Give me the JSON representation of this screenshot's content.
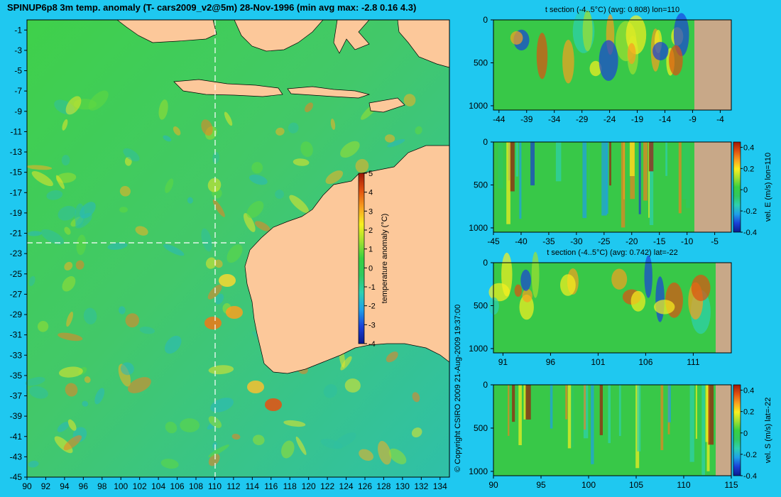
{
  "title": "SPINUP6p8 3m temp. anomaly (T- cars2009_v2@5m) 28-Nov-1996 (min avg max: -2.8 0.16 4.3)",
  "copyright": "© Copyright CSIRO 2009  21-Aug-2009 19:37:00",
  "colors": {
    "background": "#1fc8f0",
    "land": "#fcc89a",
    "section_land": "#c8a888",
    "colormap": [
      "#0a1a8c",
      "#1a40d8",
      "#1ea0e8",
      "#2dd0b0",
      "#30c860",
      "#38d040",
      "#a0e030",
      "#f8f020",
      "#f8a020",
      "#e05010",
      "#a01808"
    ]
  },
  "chart_data": [
    {
      "type": "heatmap",
      "panel": "map",
      "xlim": [
        90,
        135
      ],
      "ylim": [
        -45,
        0
      ],
      "x_ticks": [
        "90",
        "92",
        "94",
        "96",
        "98",
        "100",
        "102",
        "104",
        "106",
        "108",
        "110",
        "112",
        "114",
        "116",
        "118",
        "120",
        "122",
        "124",
        "126",
        "128",
        "130",
        "132",
        "134"
      ],
      "y_ticks": [
        "-1",
        "-3",
        "-5",
        "-7",
        "-9",
        "-11",
        "-13",
        "-15",
        "-17",
        "-19",
        "-21",
        "-23",
        "-25",
        "-27",
        "-29",
        "-31",
        "-33",
        "-35",
        "-37",
        "-39",
        "-41",
        "-43",
        "-45"
      ],
      "section_lines": {
        "lon": 110,
        "lat": -22
      },
      "colorbar": {
        "label": "temperature anomaly (°C)",
        "range": [
          -4,
          5
        ],
        "ticks": [
          "5",
          "4",
          "3",
          "2",
          "1",
          "0",
          "-1",
          "-2",
          "-3",
          "-4"
        ]
      }
    },
    {
      "type": "heatmap",
      "panel": "t-section-lon110",
      "title": "t section (-4..5°C) (avg: 0.808) lon=110",
      "x_ticks": [
        "-44",
        "-39",
        "-34",
        "-29",
        "-24",
        "-19",
        "-14",
        "-9",
        "-4"
      ],
      "y_ticks": [
        "0",
        "500",
        "1000"
      ],
      "xlim": [
        -45,
        -2
      ],
      "ylim": [
        1050,
        0
      ]
    },
    {
      "type": "heatmap",
      "panel": "velE-section-lon110",
      "x_ticks": [
        "-45",
        "-40",
        "-35",
        "-30",
        "-25",
        "-20",
        "-15",
        "-10",
        "-5"
      ],
      "y_ticks": [
        "0",
        "500",
        "1000"
      ],
      "xlim": [
        -45,
        -2
      ],
      "ylim": [
        1050,
        0
      ],
      "colorbar": {
        "label": "vel. E (m/s) lon=110",
        "range": [
          -0.4,
          0.45
        ],
        "ticks": [
          "0.4",
          "0.2",
          "0",
          "-0.2",
          "-0.4"
        ]
      }
    },
    {
      "type": "heatmap",
      "panel": "t-section-lat-22",
      "title": "t section (-4..5°C) (avg: 0.742) lat=-22",
      "x_ticks": [
        "91",
        "96",
        "101",
        "106",
        "111"
      ],
      "y_ticks": [
        "0",
        "500",
        "1000"
      ],
      "xlim": [
        90,
        115
      ],
      "ylim": [
        1050,
        0
      ]
    },
    {
      "type": "heatmap",
      "panel": "velS-section-lat-22",
      "x_ticks": [
        "90",
        "95",
        "100",
        "105",
        "110",
        "115"
      ],
      "y_ticks": [
        "0",
        "500",
        "1000"
      ],
      "xlim": [
        90,
        115
      ],
      "ylim": [
        1050,
        0
      ],
      "colorbar": {
        "label": "vel. S (m/s) lat=-22",
        "range": [
          -0.4,
          0.45
        ],
        "ticks": [
          "0.4",
          "0.2",
          "0",
          "-0.2",
          "-0.4"
        ]
      }
    }
  ]
}
